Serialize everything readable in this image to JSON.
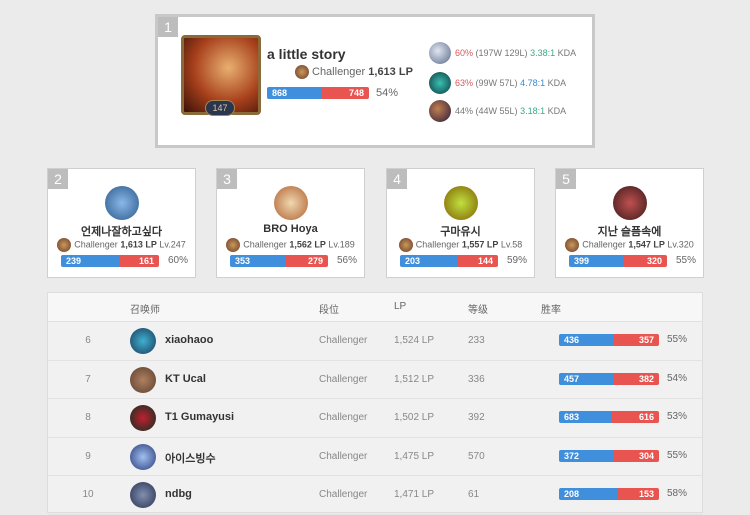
{
  "top": {
    "rank": "1",
    "level": "147",
    "name": "a little story",
    "tier": "Challenger",
    "lp": "1,613 LP",
    "wins": 868,
    "losses": 748,
    "winrate": "54%",
    "champions": [
      {
        "winrate": "60%",
        "record": "(197W 129L)",
        "kda": "3.38:1",
        "kda_label": "KDA",
        "wr_color": "red",
        "kda_color": "green"
      },
      {
        "winrate": "63%",
        "record": "(99W 57L)",
        "kda": "4.78:1",
        "kda_label": "KDA",
        "wr_color": "red",
        "kda_color": "blue"
      },
      {
        "winrate": "44%",
        "record": "(44W 55L)",
        "kda": "3.18:1",
        "kda_label": "KDA",
        "wr_color": "gray",
        "kda_color": "green"
      }
    ]
  },
  "cards": [
    {
      "rank": "2",
      "name": "언제나잘하고싶다",
      "tier": "Challenger",
      "lp": "1,613 LP",
      "level": "Lv.247",
      "wins": 239,
      "losses": 161,
      "winrate": "60%"
    },
    {
      "rank": "3",
      "name": "BRO Hoya",
      "tier": "Challenger",
      "lp": "1,562 LP",
      "level": "Lv.189",
      "wins": 353,
      "losses": 279,
      "winrate": "56%"
    },
    {
      "rank": "4",
      "name": "구마유시",
      "tier": "Challenger",
      "lp": "1,557 LP",
      "level": "Lv.58",
      "wins": 203,
      "losses": 144,
      "winrate": "59%"
    },
    {
      "rank": "5",
      "name": "지난 슬픔속에",
      "tier": "Challenger",
      "lp": "1,547 LP",
      "level": "Lv.320",
      "wins": 399,
      "losses": 320,
      "winrate": "55%"
    }
  ],
  "table": {
    "headers": {
      "summoner": "召唤师",
      "tier": "段位",
      "lp": "LP",
      "level": "等级",
      "winrate": "胜率"
    },
    "rows": [
      {
        "rank": "6",
        "name": "xiaohaoo",
        "tier": "Challenger",
        "lp": "1,524 LP",
        "level": "233",
        "wins": 436,
        "losses": 357,
        "winrate": "55%"
      },
      {
        "rank": "7",
        "name": "KT Ucal",
        "tier": "Challenger",
        "lp": "1,512 LP",
        "level": "336",
        "wins": 457,
        "losses": 382,
        "winrate": "54%"
      },
      {
        "rank": "8",
        "name": "T1 Gumayusi",
        "tier": "Challenger",
        "lp": "1,502 LP",
        "level": "392",
        "wins": 683,
        "losses": 616,
        "winrate": "53%"
      },
      {
        "rank": "9",
        "name": "아이스빙수",
        "tier": "Challenger",
        "lp": "1,475 LP",
        "level": "570",
        "wins": 372,
        "losses": 304,
        "winrate": "55%"
      },
      {
        "rank": "10",
        "name": "ndbg",
        "tier": "Challenger",
        "lp": "1,471 LP",
        "level": "61",
        "wins": 208,
        "losses": 153,
        "winrate": "58%"
      }
    ]
  },
  "colors": {
    "win": "#3f8fdc",
    "loss": "#e85450",
    "red": "#d65a5a",
    "green": "#3aa88a",
    "blue": "#3a8ad0"
  }
}
